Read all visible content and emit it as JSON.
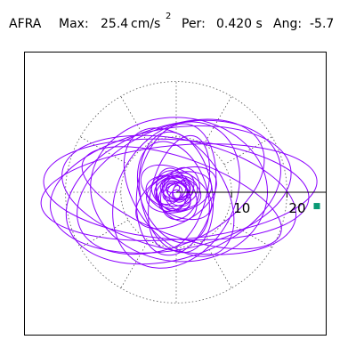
{
  "header": {
    "station": "AFRA",
    "max_label": "Max:",
    "max_value": "25.4",
    "max_unit": "cm/s",
    "max_exp": "2",
    "per_label": "Per:",
    "per_value": "0.420 s",
    "ang_label": "Ang:",
    "ang_value": "-5.7"
  },
  "colors": {
    "trace": "#8b00ff",
    "marker": "#0a9a75",
    "frame": "#000000",
    "grid": "#555555"
  },
  "chart_data": {
    "type": "polar-orbit",
    "max_radius": 25.4,
    "angle_deg": -5.7,
    "ring_radii": [
      10,
      20
    ],
    "ring_tick_labels": [
      "10",
      "20"
    ],
    "spoke_angles_deg": [
      0,
      30,
      60,
      90,
      120,
      150,
      180,
      210,
      240,
      270,
      300,
      330
    ],
    "marker": {
      "x": 25.4,
      "y": -2.5
    },
    "ellipses": [
      {
        "a": 25.0,
        "b": 8.5,
        "rot": 5,
        "cx": 0.5,
        "cy": 0.0
      },
      {
        "a": 24.0,
        "b": 9.0,
        "rot": -4,
        "cx": 0.0,
        "cy": 0.5
      },
      {
        "a": 22.0,
        "b": 11.0,
        "rot": 10,
        "cx": -1.0,
        "cy": 0.5
      },
      {
        "a": 21.5,
        "b": 10.0,
        "rot": -12,
        "cx": 0.5,
        "cy": -0.5
      },
      {
        "a": 20.0,
        "b": 12.0,
        "rot": 18,
        "cx": -0.5,
        "cy": 0.0
      },
      {
        "a": 19.0,
        "b": 7.0,
        "rot": -20,
        "cx": 1.0,
        "cy": -1.0
      },
      {
        "a": 18.0,
        "b": 10.5,
        "rot": 25,
        "cx": -1.0,
        "cy": 1.0
      },
      {
        "a": 16.0,
        "b": 13.0,
        "rot": -5,
        "cx": 0.5,
        "cy": 0.5
      },
      {
        "a": 14.0,
        "b": 10.5,
        "rot": 60,
        "cx": 0.0,
        "cy": -0.5
      },
      {
        "a": 13.0,
        "b": 8.0,
        "rot": -55,
        "cx": 0.5,
        "cy": 0.0
      },
      {
        "a": 12.0,
        "b": 7.0,
        "rot": 80,
        "cx": 0.0,
        "cy": 0.5
      },
      {
        "a": 11.0,
        "b": 6.5,
        "rot": 100,
        "cx": 0.0,
        "cy": 0.0
      },
      {
        "a": 10.5,
        "b": 5.0,
        "rot": 75,
        "cx": 0.5,
        "cy": 0.0
      },
      {
        "a": 9.5,
        "b": 6.0,
        "rot": 110,
        "cx": -0.5,
        "cy": 0.0
      },
      {
        "a": 8.0,
        "b": 4.5,
        "rot": 30,
        "cx": 0.0,
        "cy": -1.0
      },
      {
        "a": 7.0,
        "b": 4.0,
        "rot": -30,
        "cx": 0.0,
        "cy": 0.0
      },
      {
        "a": 6.0,
        "b": 3.5,
        "rot": 15,
        "cx": 0.5,
        "cy": 0.0
      },
      {
        "a": 5.0,
        "b": 3.0,
        "rot": -10,
        "cx": -0.5,
        "cy": 0.0
      },
      {
        "a": 4.0,
        "b": 2.5,
        "rot": 50,
        "cx": 0.0,
        "cy": 0.0
      },
      {
        "a": 3.0,
        "b": 2.0,
        "rot": -45,
        "cx": 0.0,
        "cy": 0.0
      },
      {
        "a": 2.5,
        "b": 1.5,
        "rot": 20,
        "cx": 0.0,
        "cy": 0.0
      }
    ]
  }
}
